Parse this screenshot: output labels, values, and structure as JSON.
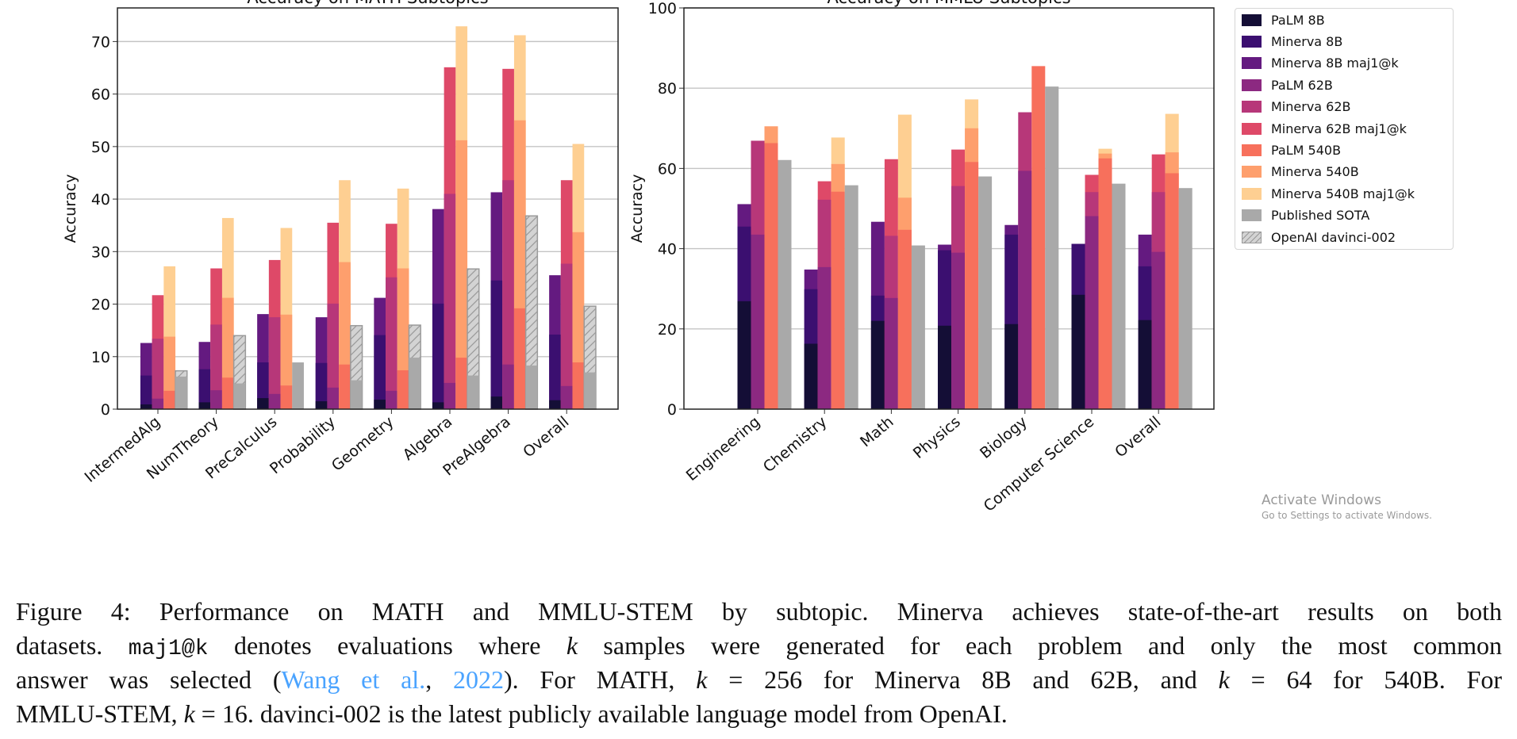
{
  "colors": {
    "PaLM 8B": "#140e36",
    "Minerva 8B": "#3b0f70",
    "Minerva 8B maj1@k": "#641a80",
    "PaLM 62B": "#8c2981",
    "Minerva 62B": "#b73779",
    "Minerva 62B maj1@k": "#de4968",
    "PaLM 540B": "#f7705c",
    "Minerva 540B": "#fe9f6d",
    "Minerva 540B maj1@k": "#fecf92",
    "Published SOTA": "#a9a9a9",
    "OpenAI davinci-002": "#d3d3d3"
  },
  "legend": {
    "placement": "right, outside plots",
    "entries": [
      "PaLM 8B",
      "Minerva 8B",
      "Minerva 8B maj1@k",
      "PaLM 62B",
      "Minerva 62B",
      "Minerva 62B maj1@k",
      "PaLM 540B",
      "Minerva 540B",
      "Minerva 540B maj1@k",
      "Published SOTA",
      "OpenAI davinci-002"
    ]
  },
  "chart_data": [
    {
      "type": "bar",
      "title": "Accuracy on MATH Subtopics",
      "xlabel": "",
      "ylabel": "Accuracy",
      "ylim": [
        0,
        76.4
      ],
      "y_ticks": [
        0,
        10,
        20,
        30,
        40,
        50,
        60,
        70
      ],
      "grid": "horizontal",
      "bar_layout": "overlaid within model-size groups",
      "categories": [
        "IntermedAlg",
        "NumTheory",
        "PreCalculus",
        "Probability",
        "Geometry",
        "Algebra",
        "PreAlgebra",
        "Overall"
      ],
      "series": [
        {
          "name": "PaLM 8B",
          "values": [
            0.9,
            1.3,
            2.1,
            1.5,
            1.8,
            1.3,
            2.4,
            1.7
          ]
        },
        {
          "name": "Minerva 8B",
          "values": [
            6.4,
            7.6,
            8.9,
            8.8,
            14.1,
            20.1,
            24.5,
            14.2
          ]
        },
        {
          "name": "Minerva 8B maj1@k",
          "values": [
            12.6,
            12.8,
            18.1,
            17.5,
            21.2,
            38.1,
            41.3,
            25.5
          ]
        },
        {
          "name": "PaLM 62B",
          "values": [
            2.0,
            3.6,
            2.9,
            4.1,
            3.5,
            5.0,
            8.5,
            4.4
          ]
        },
        {
          "name": "Minerva 62B",
          "values": [
            13.4,
            16.1,
            17.5,
            20.1,
            25.1,
            41.0,
            43.6,
            27.7
          ]
        },
        {
          "name": "Minerva 62B maj1@k",
          "values": [
            21.7,
            26.8,
            28.4,
            35.5,
            35.3,
            65.1,
            64.8,
            43.6
          ]
        },
        {
          "name": "PaLM 540B",
          "values": [
            3.5,
            6.0,
            4.5,
            8.5,
            7.4,
            9.8,
            19.2,
            8.9
          ]
        },
        {
          "name": "Minerva 540B",
          "values": [
            13.8,
            21.2,
            18.0,
            28.0,
            26.8,
            51.2,
            55.0,
            33.7
          ]
        },
        {
          "name": "Minerva 540B maj1@k",
          "values": [
            27.2,
            36.4,
            34.5,
            43.6,
            42.0,
            72.9,
            71.2,
            50.5
          ]
        },
        {
          "name": "Published SOTA",
          "values": [
            6.2,
            4.9,
            8.9,
            5.5,
            9.8,
            6.4,
            8.3,
            7.0
          ]
        },
        {
          "name": "OpenAI davinci-002",
          "values": [
            7.3,
            14.0,
            null,
            15.9,
            16.0,
            26.7,
            36.8,
            19.6
          ]
        }
      ]
    },
    {
      "type": "bar",
      "title": "Accuracy on MMLU Subtopics",
      "xlabel": "",
      "ylabel": "Accuracy",
      "ylim": [
        0,
        100
      ],
      "y_ticks": [
        0,
        20,
        40,
        60,
        80,
        100
      ],
      "grid": "horizontal",
      "bar_layout": "overlaid within model-size groups",
      "categories": [
        "Engineering",
        "Chemistry",
        "Math",
        "Physics",
        "Biology",
        "Computer Science",
        "Overall"
      ],
      "series": [
        {
          "name": "PaLM 8B",
          "values": [
            26.9,
            16.3,
            22.0,
            20.8,
            21.2,
            28.5,
            22.2
          ]
        },
        {
          "name": "Minerva 8B",
          "values": [
            45.5,
            29.9,
            28.3,
            39.6,
            43.5,
            41.2,
            35.6
          ]
        },
        {
          "name": "Minerva 8B maj1@k",
          "values": [
            51.1,
            34.8,
            46.7,
            41.0,
            45.9,
            null,
            43.5
          ]
        },
        {
          "name": "PaLM 62B",
          "values": [
            43.5,
            35.4,
            27.7,
            39.0,
            59.4,
            48.1,
            39.2
          ]
        },
        {
          "name": "Minerva 62B",
          "values": [
            66.9,
            52.2,
            43.2,
            55.6,
            74.0,
            54.1,
            54.1
          ]
        },
        {
          "name": "Minerva 62B maj1@k",
          "values": [
            null,
            56.8,
            62.3,
            64.7,
            null,
            58.4,
            63.5
          ]
        },
        {
          "name": "PaLM 540B",
          "values": [
            66.3,
            54.2,
            44.7,
            61.6,
            85.5,
            62.5,
            58.8
          ]
        },
        {
          "name": "Minerva 540B",
          "values": [
            70.5,
            61.1,
            52.7,
            70.0,
            null,
            63.7,
            64.0
          ]
        },
        {
          "name": "Minerva 540B maj1@k",
          "values": [
            null,
            67.7,
            73.4,
            77.2,
            null,
            64.9,
            73.6
          ]
        },
        {
          "name": "Published SOTA",
          "values": [
            62.1,
            55.8,
            40.8,
            58.0,
            80.4,
            56.2,
            55.1
          ]
        },
        {
          "name": "OpenAI davinci-002",
          "values": [
            null,
            null,
            null,
            null,
            null,
            null,
            null
          ]
        }
      ]
    }
  ],
  "caption": {
    "l1": "Figure 4: Performance on MATH and MMLU-STEM by subtopic. Minerva achieves state-of-the-art results on both",
    "l2a": "datasets.",
    "l2code": "maj1@k",
    "l2b": "denotes evaluations where",
    "k": "k",
    "l2c": "samples were generated for each problem and only the most common",
    "l3a": "answer was selected (",
    "cite1": "Wang et al.",
    "l3sep": ", ",
    "cite2": "2022",
    "l3b": "). For MATH,",
    "l3c": "= 256 for Minerva 8B and 62B, and",
    "l3d": "= 64 for 540B. For",
    "l4a": "MMLU-STEM,",
    "l4b": "= 16. davinci-002 is the latest publicly available language model from OpenAI."
  },
  "watermark": {
    "title": "Activate Windows",
    "subtitle": "Go to Settings to activate Windows."
  }
}
